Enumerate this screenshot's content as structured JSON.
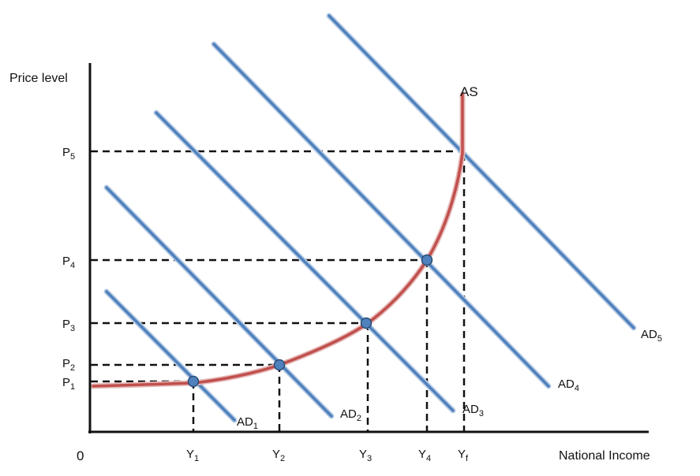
{
  "axes": {
    "y_title": "Price level",
    "x_title": "National Income",
    "origin": "0"
  },
  "price_levels": [
    {
      "base": "P",
      "sub": "1"
    },
    {
      "base": "P",
      "sub": "2"
    },
    {
      "base": "P",
      "sub": "3"
    },
    {
      "base": "P",
      "sub": "4"
    },
    {
      "base": "P",
      "sub": "5"
    }
  ],
  "income_levels": [
    {
      "base": "Y",
      "sub": "1"
    },
    {
      "base": "Y",
      "sub": "2"
    },
    {
      "base": "Y",
      "sub": "3"
    },
    {
      "base": "Y",
      "sub": "4"
    },
    {
      "base": "Y",
      "sub": "f"
    }
  ],
  "ad_curves": [
    {
      "base": "AD",
      "sub": "1"
    },
    {
      "base": "AD",
      "sub": "2"
    },
    {
      "base": "AD",
      "sub": "3"
    },
    {
      "base": "AD",
      "sub": "4"
    },
    {
      "base": "AD",
      "sub": "5"
    }
  ],
  "as_curve": {
    "label": "AS"
  },
  "colors": {
    "ad_line": "#4f81bd",
    "ad_line_light": "#b8cce4",
    "as_line": "#c0504d",
    "as_line_light": "#e6b9b8",
    "point_fill": "#4f81bd",
    "axis": "#111111",
    "guide": "#111111"
  }
}
